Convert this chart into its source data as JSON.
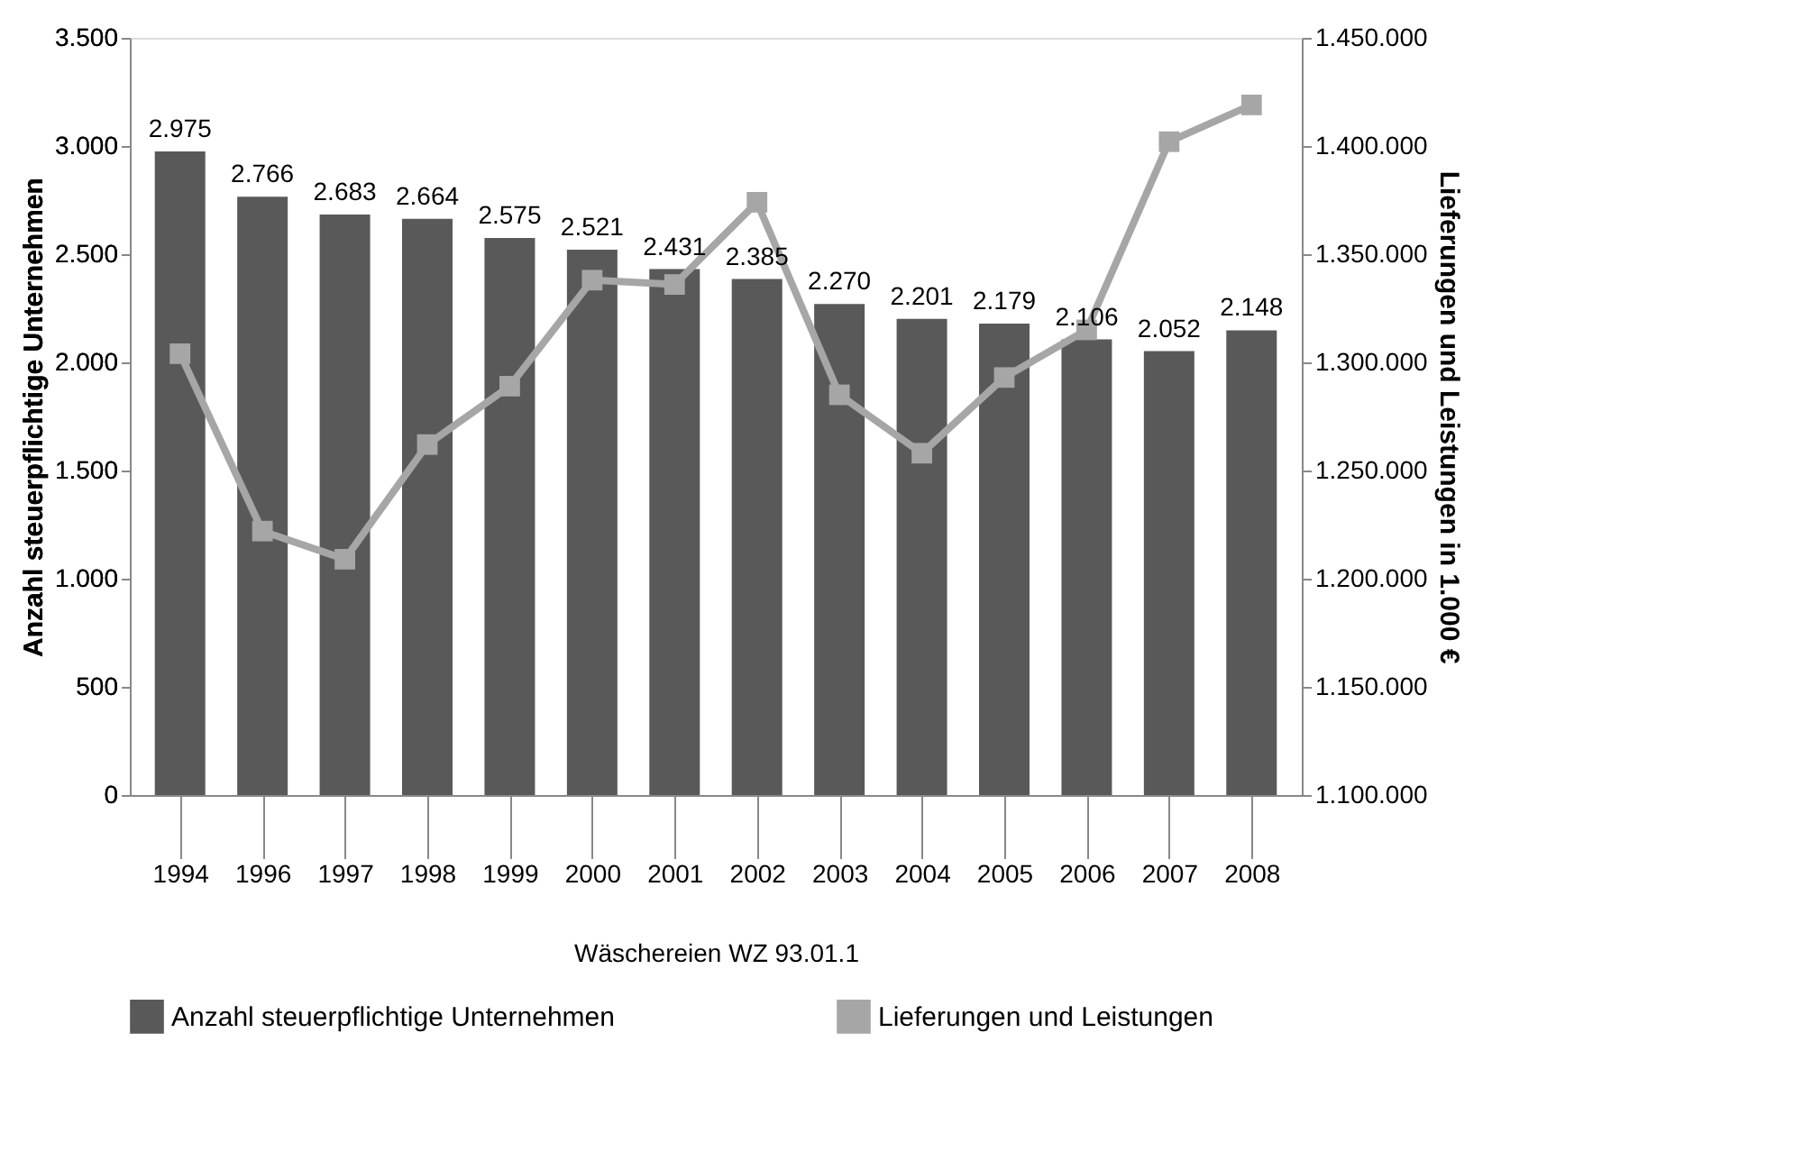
{
  "chart_data": {
    "type": "bar",
    "xlabel": "Wäschereien WZ 93.01.1",
    "ylabel": "Anzahl steuerpflichtige Unternehmen",
    "y2label": "Lieferungen und Leistungen  in  1.000  €",
    "categories": [
      "1994",
      "1996",
      "1997",
      "1998",
      "1999",
      "2000",
      "2001",
      "2002",
      "2003",
      "2004",
      "2005",
      "2006",
      "2007",
      "2008"
    ],
    "series": [
      {
        "name": "Anzahl steuerpflichtige Unternehmen",
        "color": "#595959",
        "values": [
          2975,
          2766,
          2683,
          2664,
          2575,
          2521,
          2431,
          2385,
          2270,
          2201,
          2179,
          2106,
          2052,
          2148
        ],
        "value_labels": [
          "2.975",
          "2.766",
          "2.683",
          "2.664",
          "2.575",
          "2.521",
          "2.431",
          "2.385",
          "2.270",
          "2.201",
          "2.179",
          "2.106",
          "2.052",
          "2.148"
        ]
      },
      {
        "name": "Lieferungen und Leistungen",
        "type": "line",
        "axis": "y2",
        "color": "#a6a6a6",
        "marker": "square",
        "line_style": "solid",
        "values": [
          1304000,
          1222000,
          1209000,
          1262000,
          1289000,
          1338000,
          1336000,
          1374000,
          1285000,
          1258000,
          1293000,
          1315000,
          1402000,
          1419000
        ]
      }
    ],
    "ylim": [
      0,
      3500
    ],
    "yticks": [
      0,
      500,
      {
        "value": 1000,
        "label": "1.000"
      },
      {
        "value": 1500,
        "label": "1.500"
      },
      {
        "value": 2000,
        "label": "2.000"
      },
      {
        "value": 2500,
        "label": "2.500"
      },
      {
        "value": 3000,
        "label": "3.000"
      },
      {
        "value": 3500,
        "label": "3.500"
      }
    ],
    "y2lim": [
      1100000,
      1450000
    ],
    "y2ticks": [
      {
        "value": 1100000,
        "label": "1.100.000"
      },
      {
        "value": 1150000,
        "label": "1.150.000"
      },
      {
        "value": 1200000,
        "label": "1.200.000"
      },
      {
        "value": 1250000,
        "label": "1.250.000"
      },
      {
        "value": 1300000,
        "label": "1.300.000"
      },
      {
        "value": 1350000,
        "label": "1.350.000"
      },
      {
        "value": 1400000,
        "label": "1.400.000"
      },
      {
        "value": 1450000,
        "label": "1.450.000"
      }
    ],
    "grid": false,
    "legend": "bottom"
  }
}
